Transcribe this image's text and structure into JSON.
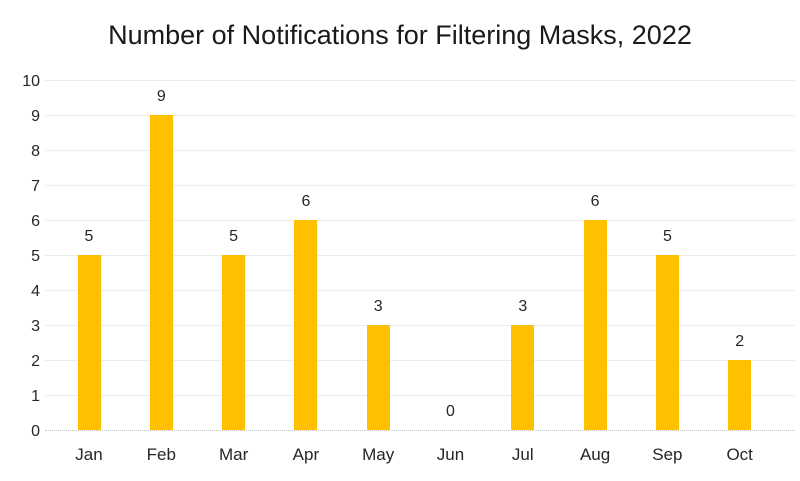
{
  "chart_data": {
    "type": "bar",
    "title": "Number of Notifications for Filtering Masks, 2022",
    "categories": [
      "Jan",
      "Feb",
      "Mar",
      "Apr",
      "May",
      "Jun",
      "Jul",
      "Aug",
      "Sep",
      "Oct"
    ],
    "values": [
      5,
      9,
      5,
      6,
      3,
      0,
      3,
      6,
      5,
      2
    ],
    "xlabel": "",
    "ylabel": "",
    "ylim": [
      0,
      10
    ],
    "ytick_step": 1,
    "yticks": [
      0,
      1,
      2,
      3,
      4,
      5,
      6,
      7,
      8,
      9,
      10
    ],
    "grid": true,
    "legend": "none",
    "data_labels": true,
    "bar_color": "#FFC000",
    "gridline_color": "#ececec",
    "baseline_color": "#c4c4c4",
    "text_color": "#262626",
    "background_color": "#ffffff"
  }
}
